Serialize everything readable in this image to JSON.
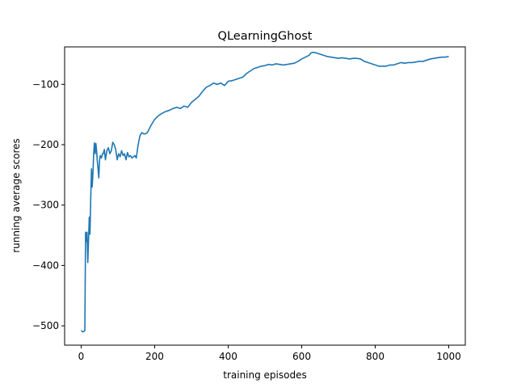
{
  "chart_data": {
    "type": "line",
    "title": "QLearningGhost",
    "xlabel": "training episodes",
    "ylabel": "running average scores",
    "xlim": [
      -45,
      1045
    ],
    "ylim": [
      -532,
      -38
    ],
    "x_ticks": [
      0,
      200,
      400,
      600,
      800,
      1000
    ],
    "y_ticks": [
      -500,
      -400,
      -300,
      -200,
      -100
    ],
    "y_tick_labels": [
      "−500",
      "−400",
      "−300",
      "−200",
      "−100"
    ],
    "grid": false,
    "series": [
      {
        "color": "#1f77b4",
        "x": [
          0,
          5,
          8,
          10,
          12,
          14,
          16,
          18,
          20,
          22,
          24,
          26,
          28,
          30,
          32,
          34,
          36,
          38,
          40,
          42,
          44,
          46,
          48,
          50,
          52,
          55,
          58,
          60,
          63,
          66,
          70,
          74,
          78,
          82,
          86,
          90,
          94,
          98,
          102,
          106,
          110,
          114,
          118,
          122,
          126,
          130,
          134,
          138,
          142,
          146,
          150,
          155,
          160,
          165,
          170,
          175,
          180,
          190,
          200,
          210,
          220,
          230,
          240,
          250,
          260,
          270,
          280,
          290,
          300,
          310,
          320,
          330,
          340,
          350,
          360,
          370,
          380,
          390,
          400,
          410,
          420,
          430,
          440,
          450,
          460,
          470,
          480,
          490,
          500,
          510,
          520,
          530,
          540,
          550,
          560,
          570,
          580,
          590,
          600,
          610,
          620,
          625,
          630,
          640,
          650,
          660,
          670,
          680,
          690,
          700,
          710,
          720,
          730,
          740,
          750,
          760,
          770,
          780,
          790,
          800,
          810,
          820,
          830,
          840,
          850,
          860,
          870,
          880,
          890,
          900,
          910,
          920,
          930,
          940,
          950,
          960,
          970,
          980,
          990,
          1000
        ],
        "y": [
          -508,
          -510,
          -509,
          -508,
          -345,
          -360,
          -345,
          -395,
          -360,
          -320,
          -348,
          -290,
          -240,
          -270,
          -248,
          -215,
          -197,
          -215,
          -198,
          -210,
          -228,
          -240,
          -255,
          -226,
          -218,
          -222,
          -215,
          -215,
          -208,
          -225,
          -210,
          -205,
          -215,
          -210,
          -196,
          -200,
          -208,
          -225,
          -215,
          -220,
          -210,
          -218,
          -215,
          -225,
          -213,
          -220,
          -218,
          -222,
          -220,
          -218,
          -222,
          -200,
          -185,
          -180,
          -182,
          -182,
          -180,
          -168,
          -158,
          -152,
          -148,
          -145,
          -143,
          -140,
          -138,
          -140,
          -136,
          -138,
          -130,
          -125,
          -120,
          -112,
          -105,
          -102,
          -98,
          -100,
          -98,
          -102,
          -95,
          -94,
          -92,
          -90,
          -88,
          -82,
          -78,
          -74,
          -72,
          -70,
          -69,
          -67,
          -68,
          -66,
          -67,
          -68,
          -67,
          -66,
          -65,
          -62,
          -58,
          -55,
          -52,
          -48,
          -47,
          -48,
          -50,
          -52,
          -54,
          -55,
          -56,
          -57,
          -56,
          -57,
          -58,
          -57,
          -57,
          -58,
          -62,
          -64,
          -66,
          -68,
          -70,
          -70,
          -70,
          -68,
          -68,
          -66,
          -64,
          -65,
          -64,
          -64,
          -63,
          -62,
          -62,
          -60,
          -58,
          -57,
          -56,
          -55,
          -55,
          -54
        ]
      }
    ]
  }
}
